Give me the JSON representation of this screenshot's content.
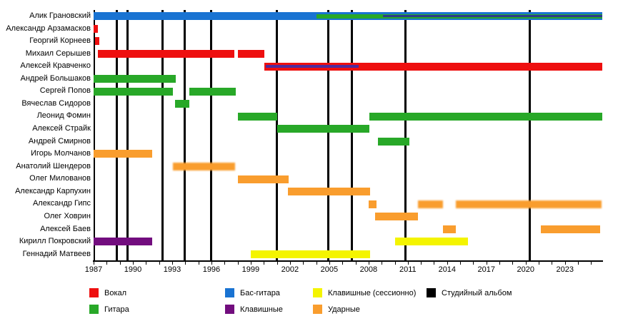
{
  "chart_data": {
    "type": "timeline",
    "title": "",
    "x_axis": {
      "min": 1987,
      "max": 2025.85,
      "label_years": [
        1987,
        1990,
        1993,
        1996,
        1999,
        2002,
        2005,
        2008,
        2011,
        2014,
        2017,
        2020,
        2023
      ],
      "minor_tick_every_years": 1,
      "grid": "off"
    },
    "palette": {
      "vocal": "#ee0f0f",
      "guitar": "#28a828",
      "bass": "#1973d2",
      "keys": "#720d7e",
      "keys_session": "#f4f400",
      "drums": "#f99d2e",
      "album": "#000000",
      "navy_overlay": "#2c3a8c",
      "indigo_overlay": "#4f2a9c"
    },
    "album_lines_years": [
      1988.75,
      1989.6,
      1992.25,
      1993.95,
      1996.0,
      2001.0,
      2004.95,
      2006.7,
      2010.8,
      2020.3
    ],
    "members": [
      {
        "name": "Алик Грановский",
        "segments": [
          {
            "role": "bass",
            "from": 1987,
            "to": 2025.85,
            "layer": "full"
          },
          {
            "role": "guitar",
            "from": 2004.0,
            "to": 2025.85,
            "layer": "mid"
          },
          {
            "role": "navy_overlay",
            "from": 2009.1,
            "to": 2025.85,
            "layer": "thin"
          }
        ]
      },
      {
        "name": "Александр Арзамасков",
        "segments": [
          {
            "role": "vocal",
            "from": 1987.0,
            "to": 1987.35,
            "layer": "full"
          }
        ]
      },
      {
        "name": "Георгий Корнеев",
        "segments": [
          {
            "role": "vocal",
            "from": 1987.1,
            "to": 1987.45,
            "layer": "full"
          }
        ]
      },
      {
        "name": "Михаил Серышев",
        "segments": [
          {
            "role": "vocal",
            "from": 1987.35,
            "to": 1997.75,
            "layer": "full"
          },
          {
            "role": "vocal",
            "from": 1998.0,
            "to": 2000.05,
            "layer": "full"
          }
        ]
      },
      {
        "name": "Алексей Кравченко",
        "segments": [
          {
            "role": "vocal",
            "from": 2000.05,
            "to": 2025.85,
            "layer": "full"
          },
          {
            "role": "indigo_overlay",
            "from": 2000.15,
            "to": 2007.25,
            "layer": "mid4"
          }
        ]
      },
      {
        "name": "Андрей Большаков",
        "segments": [
          {
            "role": "guitar",
            "from": 1987.0,
            "to": 1993.3,
            "layer": "full"
          }
        ]
      },
      {
        "name": "Сергей Попов",
        "segments": [
          {
            "role": "guitar",
            "from": 1987.0,
            "to": 1993.05,
            "layer": "full"
          },
          {
            "role": "guitar",
            "from": 1994.3,
            "to": 1997.85,
            "layer": "full"
          }
        ]
      },
      {
        "name": "Вячеслав Сидоров",
        "segments": [
          {
            "role": "guitar",
            "from": 1993.2,
            "to": 1994.3,
            "layer": "full"
          }
        ]
      },
      {
        "name": "Леонид Фомин",
        "segments": [
          {
            "role": "guitar",
            "from": 1998.0,
            "to": 2001.0,
            "layer": "full"
          },
          {
            "role": "guitar",
            "from": 2008.05,
            "to": 2025.85,
            "layer": "full"
          }
        ]
      },
      {
        "name": "Алексей Страйк",
        "segments": [
          {
            "role": "guitar",
            "from": 2001.0,
            "to": 2008.05,
            "layer": "full"
          }
        ]
      },
      {
        "name": "Андрей Смирнов",
        "segments": [
          {
            "role": "guitar",
            "from": 2008.7,
            "to": 2011.1,
            "layer": "full"
          }
        ]
      },
      {
        "name": "Игорь Молчанов",
        "segments": [
          {
            "role": "drums",
            "from": 1987.0,
            "to": 1991.5,
            "layer": "full"
          }
        ]
      },
      {
        "name": "Анатолий Шендеров",
        "segments": [
          {
            "role": "drums",
            "from": 1993.05,
            "to": 1997.8,
            "layer": "full",
            "fuzzy": true
          }
        ]
      },
      {
        "name": "Олег Милованов",
        "segments": [
          {
            "role": "drums",
            "from": 1998.0,
            "to": 2001.9,
            "layer": "full"
          }
        ]
      },
      {
        "name": "Александр Карпухин",
        "segments": [
          {
            "role": "drums",
            "from": 2001.85,
            "to": 2008.1,
            "layer": "full"
          }
        ]
      },
      {
        "name": "Александр Гипс",
        "segments": [
          {
            "role": "drums",
            "from": 2008.0,
            "to": 2008.6,
            "layer": "full"
          },
          {
            "role": "drums",
            "from": 2011.75,
            "to": 2013.7,
            "layer": "full",
            "fuzzy": true
          },
          {
            "role": "drums",
            "from": 2014.65,
            "to": 2025.8,
            "layer": "full",
            "fuzzy": true
          }
        ]
      },
      {
        "name": "Олег Ховрин",
        "segments": [
          {
            "role": "drums",
            "from": 2008.5,
            "to": 2011.75,
            "layer": "full"
          }
        ]
      },
      {
        "name": "Алексей Баев",
        "segments": [
          {
            "role": "drums",
            "from": 2013.7,
            "to": 2014.65,
            "layer": "full"
          },
          {
            "role": "drums",
            "from": 2021.15,
            "to": 2025.7,
            "layer": "full"
          }
        ]
      },
      {
        "name": "Кирилл Покровский",
        "segments": [
          {
            "role": "keys",
            "from": 1987.0,
            "to": 1991.5,
            "layer": "full"
          },
          {
            "role": "keys_session",
            "from": 2010.0,
            "to": 2015.6,
            "layer": "full"
          }
        ]
      },
      {
        "name": "Геннадий Матвеев",
        "segments": [
          {
            "role": "keys_session",
            "from": 1999.0,
            "to": 2008.1,
            "layer": "full"
          }
        ]
      }
    ],
    "legend": [
      {
        "label": "Вокал",
        "color_key": "vocal",
        "col": 0,
        "row": 0
      },
      {
        "label": "Гитара",
        "color_key": "guitar",
        "col": 0,
        "row": 1
      },
      {
        "label": "Бас-гитара",
        "color_key": "bass",
        "col": 1,
        "row": 0
      },
      {
        "label": "Клавишные",
        "color_key": "keys",
        "col": 1,
        "row": 1
      },
      {
        "label": "Клавишные (сессионно)",
        "color_key": "keys_session",
        "col": 2,
        "row": 0
      },
      {
        "label": "Ударные",
        "color_key": "drums",
        "col": 2,
        "row": 1
      },
      {
        "label": "Студийный альбом",
        "color_key": "album",
        "col": 3,
        "row": 0
      }
    ]
  }
}
